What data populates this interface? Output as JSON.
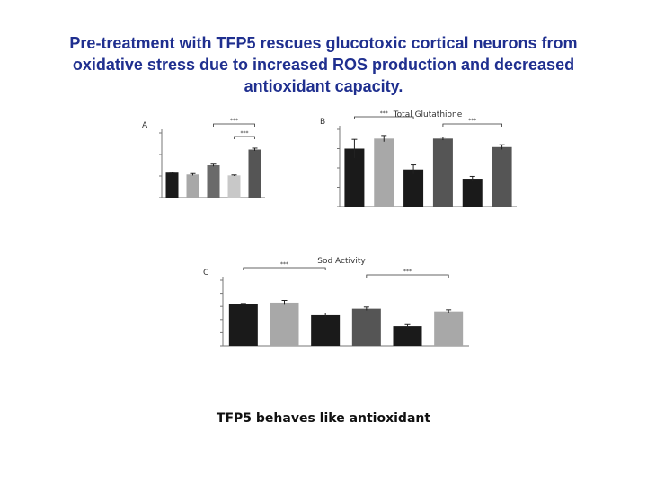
{
  "slide": {
    "title_lines": [
      "Pre-treatment with TFP5 rescues glucotoxic cortical neurons from",
      "oxidative stress due to increased ROS production and decreased",
      "antioxidant capacity."
    ],
    "caption": "TFP5 behaves like antioxidant"
  },
  "colors": {
    "title": "#1f2f8f",
    "bar_black": "#1a1a1a",
    "bar_light": "#a8a8a8",
    "bar_mid": "#6a6a6a",
    "bar_pale": "#c8c8c8",
    "bar_dark": "#555555"
  },
  "chart_data": [
    {
      "type": "bar",
      "panel": "A",
      "title": "",
      "ylabel": "",
      "categories": [
        "",
        "",
        "",
        "",
        ""
      ],
      "values": [
        2.7,
        2.5,
        3.5,
        2.4,
        5.2
      ],
      "errors": [
        0.05,
        0.1,
        0.12,
        0.05,
        0.15
      ],
      "bar_colors": [
        "#1a1a1a",
        "#a8a8a8",
        "#6a6a6a",
        "#c8c8c8",
        "#555555"
      ],
      "yticks": [
        "",
        "",
        "",
        ""
      ],
      "ylim": [
        0,
        7
      ],
      "significance": [
        "***",
        "***"
      ]
    },
    {
      "type": "bar",
      "panel": "B",
      "title": "Total Glutathione",
      "ylabel": "",
      "categories": [
        "",
        "",
        "",
        "",
        "",
        ""
      ],
      "values": [
        0.75,
        0.88,
        0.48,
        0.88,
        0.36,
        0.77
      ],
      "errors": [
        0.12,
        0.04,
        0.06,
        0.02,
        0.03,
        0.03
      ],
      "bar_colors": [
        "#1a1a1a",
        "#a8a8a8",
        "#1a1a1a",
        "#555555",
        "#1a1a1a",
        "#555555"
      ],
      "yticks": [
        "",
        "",
        "",
        "",
        ""
      ],
      "ylim": [
        0,
        1.0
      ],
      "significance": [
        "***",
        "***"
      ]
    },
    {
      "type": "bar",
      "panel": "C",
      "title": "Sod Activity",
      "ylabel": "",
      "categories": [
        "",
        "",
        "",
        "",
        "",
        ""
      ],
      "values": [
        76,
        79,
        56,
        68,
        36,
        63
      ],
      "errors": [
        1.5,
        4,
        4,
        3,
        3,
        3
      ],
      "bar_colors": [
        "#1a1a1a",
        "#a8a8a8",
        "#1a1a1a",
        "#555555",
        "#1a1a1a",
        "#a8a8a8"
      ],
      "yticks": [
        "",
        "",
        "",
        "",
        "",
        ""
      ],
      "ylim": [
        0,
        120
      ],
      "significance": [
        "***",
        "***"
      ]
    }
  ]
}
